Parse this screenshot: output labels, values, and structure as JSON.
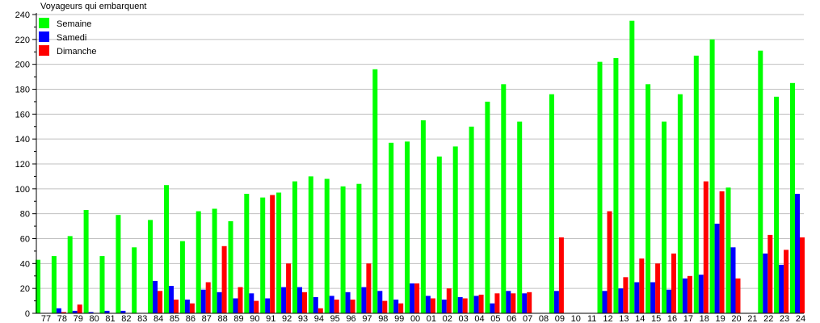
{
  "chart_data": {
    "type": "bar",
    "title": "Voyageurs qui embarquent",
    "xlabel": "",
    "ylabel": "",
    "ylim": [
      0,
      240
    ],
    "yticks": [
      0,
      20,
      40,
      60,
      80,
      100,
      120,
      140,
      160,
      180,
      200,
      220,
      240
    ],
    "grid": true,
    "legend_position": "top-left",
    "categories": [
      "77",
      "78",
      "79",
      "80",
      "81",
      "82",
      "83",
      "84",
      "85",
      "86",
      "87",
      "88",
      "89",
      "90",
      "91",
      "92",
      "93",
      "94",
      "95",
      "96",
      "97",
      "98",
      "99",
      "00",
      "01",
      "02",
      "03",
      "04",
      "05",
      "06",
      "07",
      "08",
      "09",
      "10",
      "11",
      "12",
      "13",
      "14",
      "15",
      "16",
      "17",
      "18",
      "19",
      "20",
      "21",
      "22",
      "23",
      "24"
    ],
    "series": [
      {
        "name": "Semaine",
        "color": "#00ff00",
        "values": [
          43,
          46,
          62,
          83,
          46,
          79,
          53,
          75,
          103,
          58,
          82,
          84,
          74,
          96,
          93,
          97,
          106,
          110,
          108,
          102,
          104,
          196,
          137,
          138,
          155,
          126,
          134,
          150,
          170,
          184,
          154,
          0,
          176,
          0,
          0,
          202,
          205,
          235,
          184,
          154,
          176,
          207,
          220,
          101,
          0,
          211,
          174,
          185
        ]
      },
      {
        "name": "Samedi",
        "color": "#0000ff",
        "values": [
          0,
          4,
          2,
          1,
          2,
          2,
          0,
          26,
          22,
          11,
          19,
          17,
          12,
          16,
          12,
          21,
          21,
          13,
          14,
          17,
          21,
          18,
          11,
          24,
          14,
          11,
          13,
          14,
          8,
          18,
          16,
          0,
          18,
          0,
          0,
          18,
          20,
          25,
          25,
          19,
          28,
          31,
          72,
          53,
          0,
          48,
          39,
          96
        ]
      },
      {
        "name": "Dimanche",
        "color": "#ff0000",
        "values": [
          0,
          1,
          7,
          0,
          0,
          0,
          0,
          18,
          11,
          8,
          25,
          54,
          21,
          10,
          95,
          40,
          17,
          4,
          11,
          11,
          40,
          10,
          8,
          24,
          12,
          20,
          12,
          15,
          16,
          16,
          17,
          0,
          61,
          0,
          0,
          82,
          29,
          44,
          40,
          48,
          30,
          106,
          98,
          28,
          0,
          63,
          51,
          61
        ]
      }
    ]
  }
}
